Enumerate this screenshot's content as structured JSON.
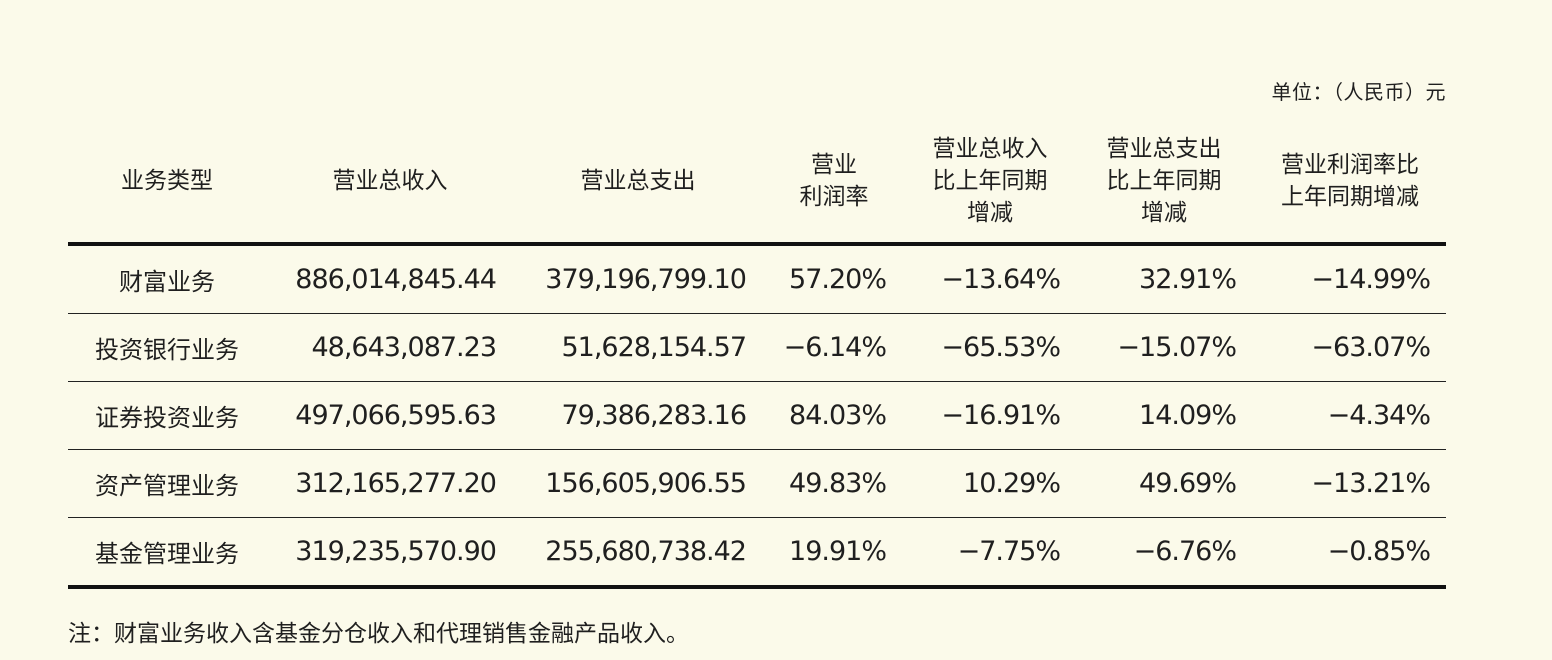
{
  "unit_label": "单位：（人民币）元",
  "headers": {
    "type": [
      "业务类型"
    ],
    "revenue": [
      "营业总收入"
    ],
    "expense": [
      "营业总支出"
    ],
    "margin": [
      "营业",
      "利润率"
    ],
    "revenue_yoy": [
      "营业总收入",
      "比上年同期",
      "增减"
    ],
    "expense_yoy": [
      "营业总支出",
      "比上年同期",
      "增减"
    ],
    "margin_yoy": [
      "营业利润率比",
      "上年同期增减"
    ]
  },
  "rows": [
    [
      "财富业务",
      "886,014,845.44",
      "379,196,799.10",
      "57.20%",
      "−13.64%",
      "32.91%",
      "−14.99%"
    ],
    [
      "投资银行业务",
      "48,643,087.23",
      "51,628,154.57",
      "−6.14%",
      "−65.53%",
      "−15.07%",
      "−63.07%"
    ],
    [
      "证券投资业务",
      "497,066,595.63",
      "79,386,283.16",
      "84.03%",
      "−16.91%",
      "14.09%",
      "−4.34%"
    ],
    [
      "资产管理业务",
      "312,165,277.20",
      "156,605,906.55",
      "49.83%",
      "10.29%",
      "49.69%",
      "−13.21%"
    ],
    [
      "基金管理业务",
      "319,235,570.90",
      "255,680,738.42",
      "19.91%",
      "−7.75%",
      "−6.76%",
      "−0.85%"
    ]
  ],
  "note": "注：财富业务收入含基金分仓收入和代理销售金融产品收入。"
}
